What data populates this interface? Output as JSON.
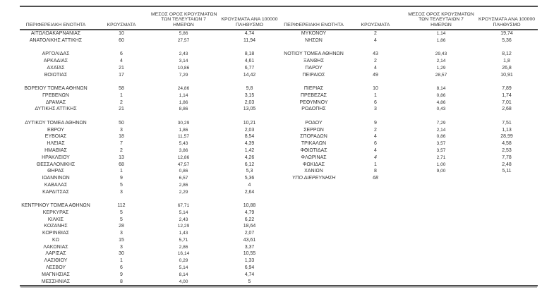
{
  "header": {
    "region": "ΠΕΡΙΦΕΡΕΙΑΚΗ ΕΝΟΤΗΤΑ",
    "cases": "ΚΡΟΥΣΜΑΤΑ",
    "avg7_line1": "ΜΕΣΟΣ ΟΡΟΣ ΚΡΟΥΣΜΑΤΩΝ",
    "avg7_line2": "ΤΩΝ ΤΕΛΕΥΤΑΙΩΝ 7",
    "avg7_line3": "ΗΜΕΡΩΝ",
    "per100k_line1": "ΚΡΟΥΣΜΑΤΑ ΑΝΑ 100000",
    "per100k_line2": "ΠΛΗΘΥΣΜΟ"
  },
  "colors": {
    "text": "#333333",
    "rule": "#4f4f4f",
    "background": "#ffffff"
  },
  "table": {
    "rows": [
      {
        "cells": [
          "ΑΙΤΩΛΟΑΚΑΡΝΑΝΙΑΣ",
          "10",
          "5,86",
          "4,74",
          "ΜΥΚΟΝΟΥ",
          "2",
          "1,14",
          "19,74"
        ]
      },
      {
        "cells": [
          "ΑΝΑΤΟΛΙΚΗΣ ΑΤΤΙΚΗΣ",
          "60",
          "27,57",
          "11,94",
          "ΝΗΣΩΝ",
          "4",
          "1,86",
          "5,36"
        ]
      },
      {
        "cells": [
          "",
          "",
          "",
          "",
          "",
          "",
          "",
          ""
        ]
      },
      {
        "cells": [
          "ΑΡΓΟΛΙΔΑΣ",
          "6",
          "2,43",
          "8,18",
          "ΝΟΤΙΟΥ ΤΟΜΕΑ ΑΘΗΝΩΝ",
          "43",
          "29,43",
          "8,12"
        ]
      },
      {
        "cells": [
          "ΑΡΚΑΔΙΑΣ",
          "4",
          "3,14",
          "4,61",
          "ΞΑΝΘΗΣ",
          "2",
          "2,14",
          "1,8"
        ]
      },
      {
        "cells": [
          "ΑΧΑΪΑΣ",
          "21",
          "10,86",
          "6,77",
          "ΠΑΡΟΥ",
          "4",
          "1,29",
          "26,8"
        ]
      },
      {
        "cells": [
          "ΒΟΙΩΤΙΑΣ",
          "17",
          "7,29",
          "14,42",
          "ΠΕΙΡΑΙΩΣ",
          "49",
          "28,57",
          "10,91"
        ]
      },
      {
        "cells": [
          "",
          "",
          "",
          "",
          "",
          "",
          "",
          ""
        ]
      },
      {
        "cells": [
          "ΒΟΡΕΙΟΥ ΤΟΜΕΑ ΑΘΗΝΩΝ",
          "58",
          "24,86",
          "9,8",
          "ΠΙΕΡΙΑΣ",
          "10",
          "8,14",
          "7,89"
        ]
      },
      {
        "cells": [
          "ΓΡΕΒΕΝΩΝ",
          "1",
          "1,14",
          "3,15",
          "ΠΡΕΒΕΖΑΣ",
          "1",
          "0,86",
          "1,74"
        ]
      },
      {
        "cells": [
          "ΔΡΑΜΑΣ",
          "2",
          "1,86",
          "2,03",
          "ΡΕΘΥΜΝΟΥ",
          "6",
          "4,86",
          "7,01"
        ]
      },
      {
        "cells": [
          "ΔΥΤΙΚΗΣ ΑΤΤΙΚΗΣ",
          "21",
          "8,86",
          "13,05",
          "ΡΟΔΟΠΗΣ",
          "3",
          "0,43",
          "2,68"
        ]
      },
      {
        "cells": [
          "",
          "",
          "",
          "",
          "",
          "",
          "",
          ""
        ]
      },
      {
        "cells": [
          "ΔΥΤΙΚΟΥ ΤΟΜΕΑ ΑΘΗΝΩΝ",
          "50",
          "30,29",
          "10,21",
          "ΡΟΔΟΥ",
          "9",
          "7,29",
          "7,51"
        ]
      },
      {
        "cells": [
          "ΕΒΡΟΥ",
          "3",
          "1,86",
          "2,03",
          "ΣΕΡΡΩΝ",
          "2",
          "2,14",
          "1,13"
        ]
      },
      {
        "cells": [
          "ΕΥΒΟΙΑΣ",
          "18",
          "11,57",
          "8,54",
          "ΣΠΟΡΑΔΩΝ",
          "4",
          "0,86",
          "28,99"
        ]
      },
      {
        "cells": [
          "ΗΛΕΙΑΣ",
          "7",
          "5,43",
          "4,39",
          "ΤΡΙΚΑΛΩΝ",
          "6",
          "3,57",
          "4,58"
        ]
      },
      {
        "cells": [
          "ΗΜΑΘΙΑΣ",
          "2",
          "3,86",
          "1,42",
          "ΦΘΙΩΤΙΔΑΣ",
          "4",
          "3,57",
          "2,53"
        ]
      },
      {
        "cells": [
          "ΗΡΑΚΛΕΙΟΥ",
          "13",
          "12,86",
          "4,26",
          "ΦΛΩΡΙΝΑΣ",
          "4",
          "2,71",
          "7,78"
        ],
        "italic": [
          5
        ]
      },
      {
        "cells": [
          "ΘΕΣΣΑΛΟΝΙΚΗΣ",
          "68",
          "47,57",
          "6,12",
          "ΦΩΚΙΔΑΣ",
          "1",
          "1,00",
          "2,48"
        ]
      },
      {
        "cells": [
          "ΘΗΡΑΣ",
          "1",
          "0,86",
          "5,3",
          "ΧΑΝΙΩΝ",
          "8",
          "9,00",
          "5,11"
        ]
      },
      {
        "cells": [
          "ΙΩΑΝΝΙΝΩΝ",
          "9",
          "6,57",
          "5,36",
          "ΥΠΟ ΔΙΕΡΕΥΝΗΣΗ",
          "68",
          "",
          ""
        ],
        "italic": [
          4,
          5
        ]
      },
      {
        "cells": [
          "ΚΑΒΑΛΑΣ",
          "5",
          "2,86",
          "4",
          "",
          "",
          "",
          ""
        ]
      },
      {
        "cells": [
          "ΚΑΡΔΙΤΣΑΣ",
          "3",
          "2,29",
          "2,64",
          "",
          "",
          "",
          ""
        ]
      },
      {
        "cells": [
          "",
          "",
          "",
          "",
          "",
          "",
          "",
          ""
        ]
      },
      {
        "cells": [
          "ΚΕΝΤΡΙΚΟΥ ΤΟΜΕΑ ΑΘΗΝΩΝ",
          "112",
          "67,71",
          "10,88",
          "",
          "",
          "",
          ""
        ]
      },
      {
        "cells": [
          "ΚΕΡΚΥΡΑΣ",
          "5",
          "5,14",
          "4,79",
          "",
          "",
          "",
          ""
        ]
      },
      {
        "cells": [
          "ΚΙΛΚΙΣ",
          "5",
          "2,43",
          "6,22",
          "",
          "",
          "",
          ""
        ]
      },
      {
        "cells": [
          "ΚΟΖΑΝΗΣ",
          "28",
          "12,29",
          "18,64",
          "",
          "",
          "",
          ""
        ]
      },
      {
        "cells": [
          "ΚΟΡΙΝΘΙΑΣ",
          "3",
          "1,43",
          "2,07",
          "",
          "",
          "",
          ""
        ]
      },
      {
        "cells": [
          "ΚΩ",
          "15",
          "5,71",
          "43,61",
          "",
          "",
          "",
          ""
        ]
      },
      {
        "cells": [
          "ΛΑΚΩΝΙΑΣ",
          "3",
          "2,86",
          "3,37",
          "",
          "",
          "",
          ""
        ]
      },
      {
        "cells": [
          "ΛΑΡΙΣΑΣ",
          "30",
          "16,14",
          "10,55",
          "",
          "",
          "",
          ""
        ]
      },
      {
        "cells": [
          "ΛΑΣΙΘΙΟΥ",
          "1",
          "0,29",
          "1,33",
          "",
          "",
          "",
          ""
        ]
      },
      {
        "cells": [
          "ΛΕΣΒΟΥ",
          "6",
          "5,14",
          "6,94",
          "",
          "",
          "",
          ""
        ]
      },
      {
        "cells": [
          "ΜΑΓΝΗΣΙΑΣ",
          "9",
          "8,14",
          "4,74",
          "",
          "",
          "",
          ""
        ]
      },
      {
        "cells": [
          "ΜΕΣΣΗΝΙΑΣ",
          "8",
          "4,00",
          "5",
          "",
          "",
          "",
          ""
        ]
      }
    ]
  }
}
